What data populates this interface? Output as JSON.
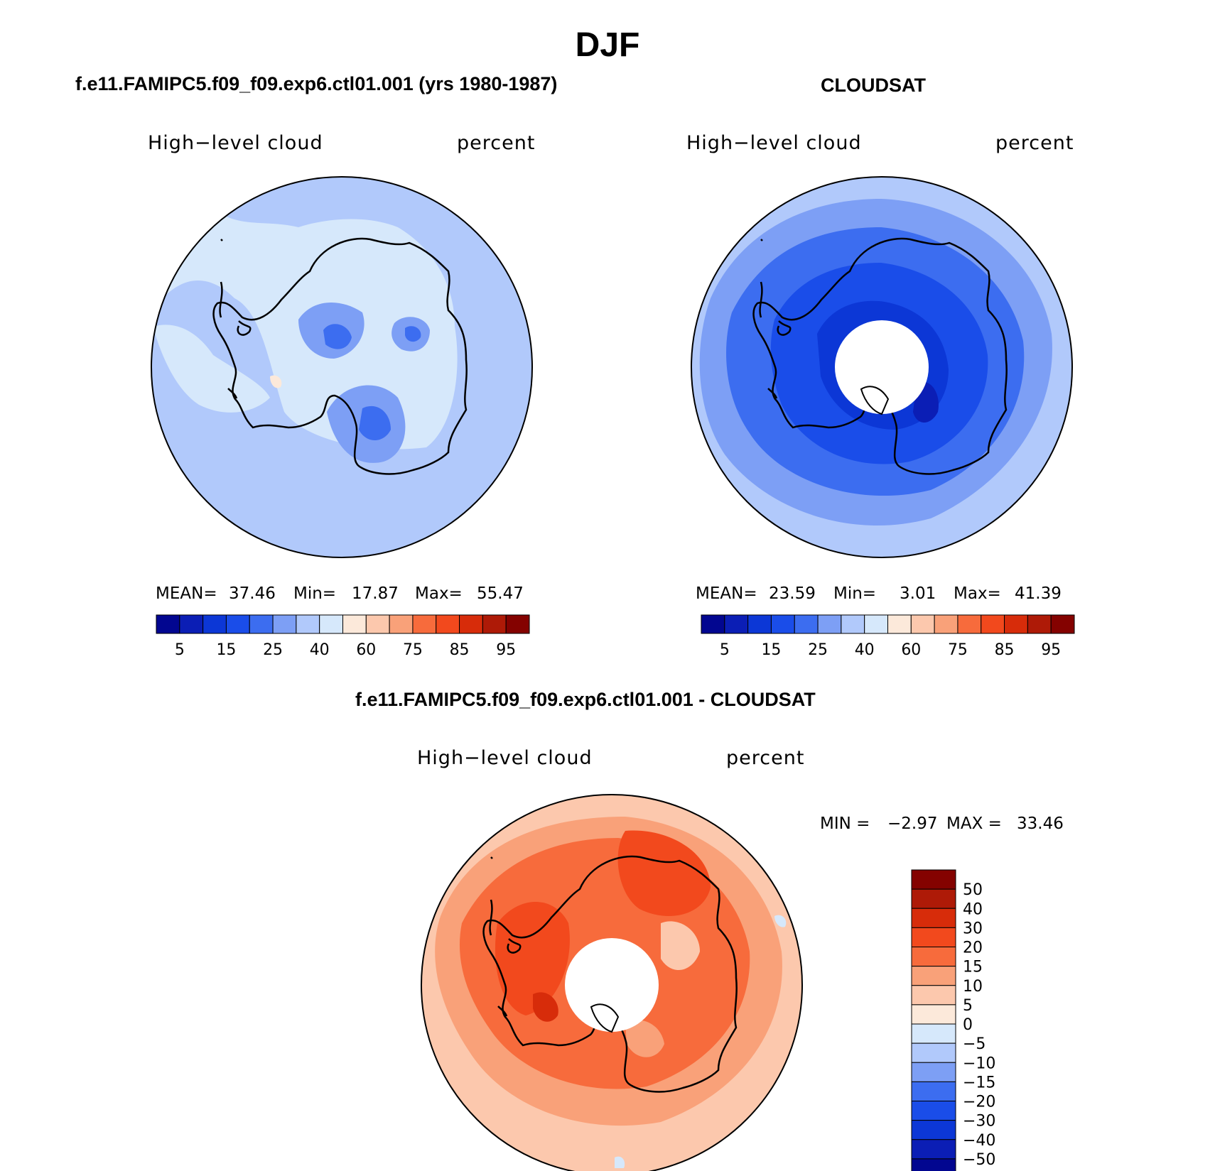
{
  "figure": {
    "title": "DJF"
  },
  "panels": [
    {
      "title": "f.e11.FAMIPC5.f09_f09.exp6.ctl01.001 (yrs 1980-1987)",
      "variable": "High−level cloud",
      "units": "percent",
      "stats": {
        "mean_label": "MEAN=",
        "mean": "37.46",
        "min_label": "Min=",
        "min": "17.87",
        "max_label": "Max=",
        "max": "55.47"
      }
    },
    {
      "title": "CLOUDSAT",
      "variable": "High−level cloud",
      "units": "percent",
      "stats": {
        "mean_label": "MEAN=",
        "mean": "23.59",
        "min_label": "Min=",
        "min": "3.01",
        "max_label": "Max=",
        "max": "41.39"
      }
    },
    {
      "title": "f.e11.FAMIPC5.f09_f09.exp6.ctl01.001 - CLOUDSAT",
      "variable": "High−level cloud",
      "units": "percent",
      "stats": {
        "min_label": "MIN =",
        "min": "−2.97",
        "max_label": "MAX =",
        "max": "33.46"
      }
    }
  ],
  "colorbar_abs": {
    "colors": [
      "#020690",
      "#0b1eb5",
      "#0c37d6",
      "#1a4de9",
      "#3c6df0",
      "#7d9ff5",
      "#b1c9fb",
      "#d6e8fb",
      "#fce9da",
      "#fcc8ad",
      "#f9a179",
      "#f76b3c",
      "#f2491d",
      "#d72c0a",
      "#ae1a07",
      "#840200"
    ],
    "ticks": [
      "5",
      "15",
      "25",
      "40",
      "60",
      "75",
      "85",
      "95"
    ]
  },
  "colorbar_diff": {
    "colors": [
      "#840200",
      "#ae1a07",
      "#d72c0a",
      "#f2491d",
      "#f76b3c",
      "#f9a179",
      "#fcc8ad",
      "#fce9da",
      "#d6e8fb",
      "#b1c9fb",
      "#7d9ff5",
      "#3c6df0",
      "#1a4de9",
      "#0c37d6",
      "#0b1eb5",
      "#020690"
    ],
    "ticks": [
      "50",
      "40",
      "30",
      "20",
      "15",
      "10",
      "5",
      "0",
      "−5",
      "−10",
      "−15",
      "−20",
      "−30",
      "−40",
      "−50"
    ]
  },
  "map_colors": {
    "model_bg": "#b1c9fb",
    "model_light": "#d6e8fb",
    "model_mid": "#7d9ff5",
    "model_dark": "#3c6df0",
    "model_darkest": "#1a4de9",
    "model_warm": "#fce9da",
    "obs_outer": "#b1c9fb",
    "obs_mid": "#7d9ff5",
    "obs_dark": "#3c6df0",
    "obs_darker": "#1a4de9",
    "obs_darkest": "#0c37d6",
    "obs_core": "#0b1eb5",
    "diff_outer": "#fcc8ad",
    "diff_mid": "#f9a179",
    "diff_dark": "#f76b3c",
    "diff_darker": "#f2491d",
    "diff_darkest": "#d72c0a",
    "diff_neutral": "#fce9da",
    "diff_neg": "#d6e8fb",
    "coast": "#000000"
  }
}
